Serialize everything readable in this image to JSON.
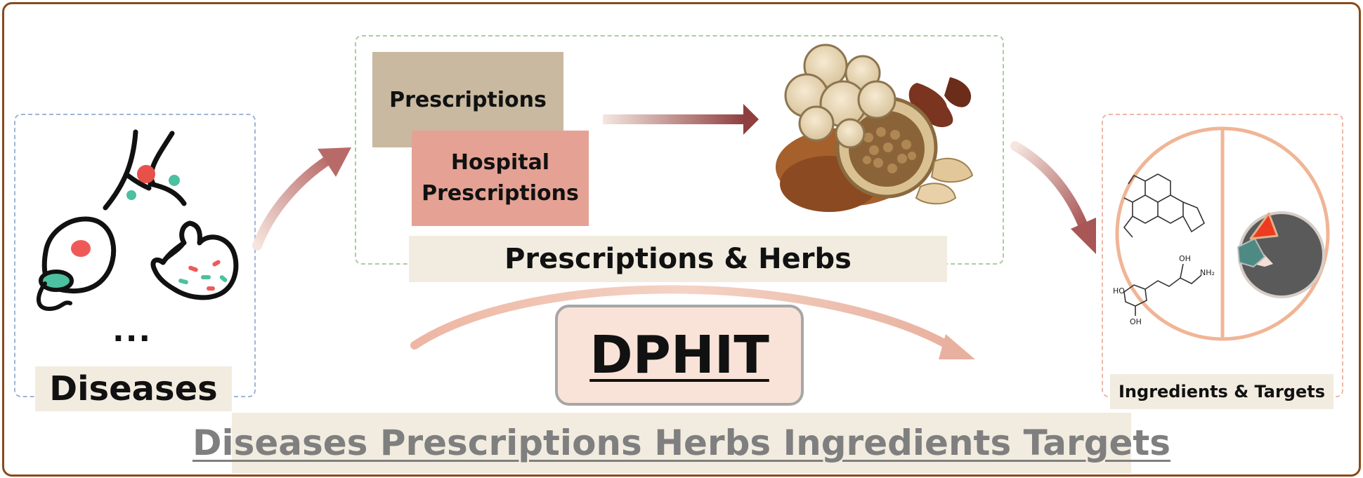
{
  "diseases": {
    "label": "Diseases",
    "ellipsis": "..."
  },
  "prescriptions": {
    "box_label": "Prescriptions",
    "hospital_line1": "Hospital",
    "hospital_line2": "Prescriptions",
    "section_label": "Prescriptions & Herbs"
  },
  "ingredients": {
    "label": "Ingredients & Targets"
  },
  "center": {
    "title": "DPHIT"
  },
  "full_name": "Diseases Prescriptions Herbs Ingredients Targets",
  "molecule_labels": {
    "oh": "OH",
    "ho": "HO",
    "nh2": "NH₂"
  },
  "colors": {
    "frame": "#8a4a1c",
    "label_bg": "#f2ece0",
    "prescriptions_box": "#c8b9a0",
    "hospital_box": "#e5a294",
    "dphit_bg": "#f9e3d8",
    "full_name_text": "#7f7f7f",
    "arrow": "#9e4a4a"
  },
  "icons": [
    "lung-icon",
    "stomach-icon",
    "cell-icon",
    "herbs-illustration",
    "molecule-structure",
    "target-protein"
  ]
}
